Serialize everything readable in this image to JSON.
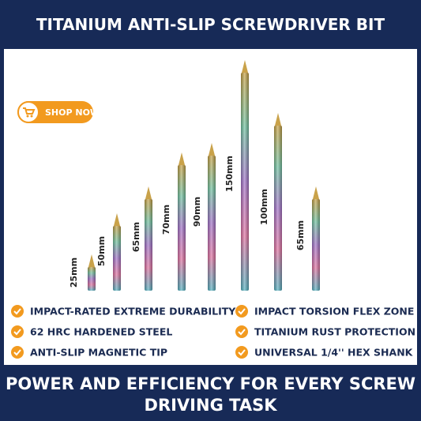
{
  "header": {
    "title": "TITANIUM ANTI-SLIP SCREWDRIVER BIT"
  },
  "button": {
    "label": "SHOP NOW"
  },
  "bits": [
    {
      "label": "25mm"
    },
    {
      "label": "50mm"
    },
    {
      "label": "65mm"
    },
    {
      "label": "70mm"
    },
    {
      "label": "90mm"
    },
    {
      "label": "150mm"
    },
    {
      "label": "100mm"
    },
    {
      "label": "65mm"
    }
  ],
  "features": {
    "left": [
      "IMPACT-RATED EXTREME DURABILITY",
      "62 HRC HARDENED STEEL",
      "ANTI-SLIP MAGNETIC TIP"
    ],
    "right": [
      "IMPACT TORSION FLEX ZONE",
      "TITANIUM RUST PROTECTION",
      "UNIVERSAL 1/4'' HEX SHANK"
    ]
  },
  "footer": {
    "lines": [
      "POWER AND EFFICIENCY FOR EVERY SCREW",
      "DRIVING TASK"
    ]
  }
}
